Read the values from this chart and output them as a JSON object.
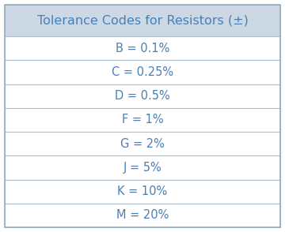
{
  "title": "Tolerance Codes for Resistors (±)",
  "rows": [
    "B = 0.1%",
    "C = 0.25%",
    "D = 0.5%",
    "F = 1%",
    "G = 2%",
    "J = 5%",
    "K = 10%",
    "M = 20%"
  ],
  "header_bg": "#ccd9e5",
  "row_bg": "#ffffff",
  "border_color": "#b0bfc9",
  "text_color": "#4a7fb5",
  "header_text_color": "#4a7fb5",
  "outer_border_color": "#9aaebb",
  "title_fontsize": 11.5,
  "row_fontsize": 10.5,
  "fig_bg": "#ffffff"
}
